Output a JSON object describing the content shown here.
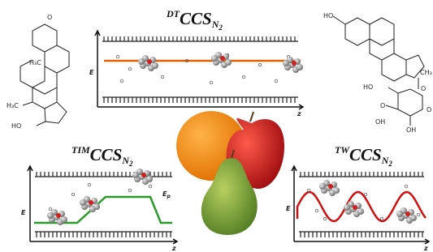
{
  "panels": {
    "dt": {
      "prefix": "DT",
      "label": "CCS",
      "sub": "N",
      "sub2": "2",
      "y_axis": "E",
      "x_axis": "z"
    },
    "tim": {
      "prefix": "TIM",
      "label": "CCS",
      "sub": "N",
      "sub2": "2",
      "y_axis": "E",
      "x_axis": "z",
      "annotation": "E",
      "annotation_sub": "p"
    },
    "tw": {
      "prefix": "TW",
      "label": "CCS",
      "sub": "N",
      "sub2": "2",
      "y_axis": "E",
      "x_axis": "z"
    }
  },
  "molecules": {
    "steroid": {
      "labels": [
        "O",
        "H₃C",
        "H₃C",
        "HO"
      ]
    },
    "glucuronide": {
      "labels": [
        "HO",
        "HO",
        "O",
        "O",
        "OH",
        "OH",
        "CH₃",
        "O"
      ]
    }
  }
}
